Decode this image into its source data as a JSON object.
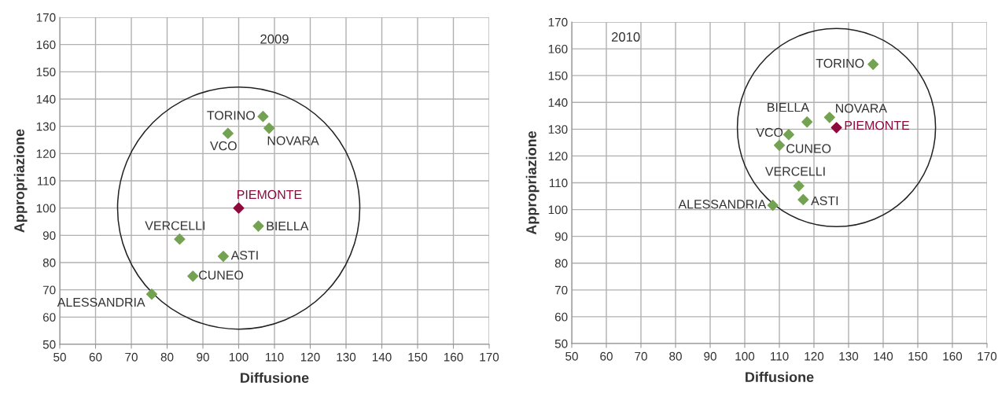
{
  "chart_data": [
    {
      "type": "scatter",
      "title": "2009",
      "xlabel": "Diffusione",
      "ylabel": "Appropriazione",
      "xlim": [
        50,
        170
      ],
      "ylim": [
        50,
        170
      ],
      "xticks": [
        50,
        60,
        70,
        80,
        90,
        100,
        110,
        120,
        130,
        140,
        150,
        160,
        170
      ],
      "yticks": [
        50,
        60,
        70,
        80,
        90,
        100,
        110,
        120,
        130,
        140,
        150,
        160,
        170
      ],
      "grid": true,
      "marker": "diamond",
      "legend": false,
      "series": [
        {
          "name": "TORINO",
          "color": "#73a352",
          "x": [
            106.8
          ],
          "values": [
            133.6
          ]
        },
        {
          "name": "NOVARA",
          "color": "#73a352",
          "x": [
            108.5
          ],
          "values": [
            129.3
          ]
        },
        {
          "name": "VCO",
          "color": "#73a352",
          "x": [
            97.0
          ],
          "values": [
            127.4
          ]
        },
        {
          "name": "PIEMONTE",
          "color": "#8c0a3c",
          "x": [
            100
          ],
          "values": [
            100
          ]
        },
        {
          "name": "BIELLA",
          "color": "#73a352",
          "x": [
            105.5
          ],
          "values": [
            93.4
          ]
        },
        {
          "name": "VERCELLI",
          "color": "#73a352",
          "x": [
            83.5
          ],
          "values": [
            88.6
          ]
        },
        {
          "name": "ASTI",
          "color": "#73a352",
          "x": [
            95.7
          ],
          "values": [
            82.3
          ]
        },
        {
          "name": "CUNEO",
          "color": "#73a352",
          "x": [
            87.2
          ],
          "values": [
            75.0
          ]
        },
        {
          "name": "ALESSANDRIA",
          "color": "#73a352",
          "x": [
            75.7
          ],
          "values": [
            68.4
          ]
        }
      ]
    },
    {
      "type": "scatter",
      "title": "2010",
      "xlabel": "Diffusione",
      "ylabel": "Appropriazione",
      "xlim": [
        50,
        170
      ],
      "ylim": [
        50,
        170
      ],
      "xticks": [
        50,
        60,
        70,
        80,
        90,
        100,
        110,
        120,
        130,
        140,
        150,
        160,
        170
      ],
      "yticks": [
        50,
        60,
        70,
        80,
        90,
        100,
        110,
        120,
        130,
        140,
        150,
        160,
        170
      ],
      "grid": true,
      "marker": "diamond",
      "legend": false,
      "series": [
        {
          "name": "TORINO",
          "color": "#73a352",
          "x": [
            137.1
          ],
          "values": [
            154.2
          ]
        },
        {
          "name": "NOVARA",
          "color": "#73a352",
          "x": [
            124.5
          ],
          "values": [
            134.4
          ]
        },
        {
          "name": "VCO",
          "color": "#73a352",
          "x": [
            112.7
          ],
          "values": [
            128.0
          ]
        },
        {
          "name": "PIEMONTE",
          "color": "#8c0a3c",
          "x": [
            126.5
          ],
          "values": [
            130.6
          ]
        },
        {
          "name": "BIELLA",
          "color": "#73a352",
          "x": [
            118.0
          ],
          "values": [
            132.7
          ]
        },
        {
          "name": "VERCELLI",
          "color": "#73a352",
          "x": [
            115.6
          ],
          "values": [
            108.8
          ]
        },
        {
          "name": "ASTI",
          "color": "#73a352",
          "x": [
            116.9
          ],
          "values": [
            103.7
          ]
        },
        {
          "name": "CUNEO",
          "color": "#73a352",
          "x": [
            110.0
          ],
          "values": [
            124.0
          ]
        },
        {
          "name": "ALESSANDRIA",
          "color": "#73a352",
          "x": [
            108.1
          ],
          "values": [
            101.6
          ]
        }
      ]
    }
  ]
}
